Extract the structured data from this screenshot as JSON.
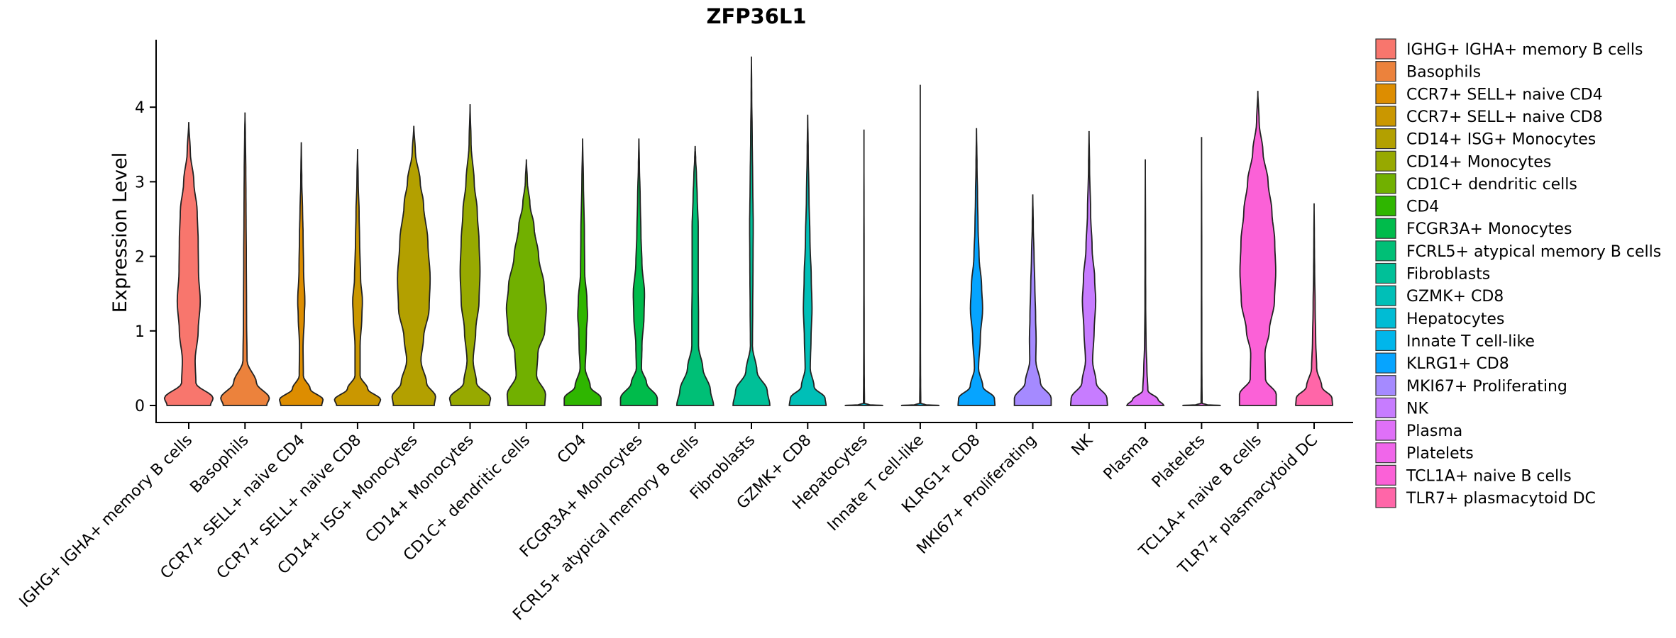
{
  "chart_data": {
    "type": "violin",
    "title": "ZFP36L1",
    "xlabel": "",
    "ylabel": "Expression Level",
    "ylim": [
      -0.22,
      4.9
    ],
    "yticks": [
      0,
      1,
      2,
      3,
      4
    ],
    "categories": [
      "IGHG+ IGHA+ memory B cells",
      "Basophils",
      "CCR7+ SELL+ naive CD4",
      "CCR7+ SELL+ naive CD8",
      "CD14+ ISG+ Monocytes",
      "CD14+ Monocytes",
      "CD1C+ dendritic cells",
      "CD4",
      "FCGR3A+ Monocytes",
      "FCRL5+ atypical memory B cells",
      "Fibroblasts",
      "GZMK+ CD8",
      "Hepatocytes",
      "Innate T cell-like",
      "KLRG1+ CD8",
      "MKI67+ Proliferating",
      "NK",
      "Plasma",
      "Platelets",
      "TCL1A+ naive B cells",
      "TLR7+ plasmacytoid DC"
    ],
    "legend_labels": [
      " IGHG+ IGHA+ memory B cells",
      "Basophils",
      "CCR7+ SELL+ naive CD4",
      "CCR7+ SELL+ naive CD8",
      "CD14+ ISG+ Monocytes",
      "CD14+ Monocytes",
      "CD1C+ dendritic cells",
      "CD4",
      "FCGR3A+ Monocytes",
      "FCRL5+ atypical memory B cells",
      "Fibroblasts",
      "GZMK+ CD8",
      "Hepatocytes",
      "Innate T cell-like",
      "KLRG1+ CD8",
      "MKI67+ Proliferating",
      "NK",
      "Plasma",
      "Platelets",
      "TCL1A+ naive B cells",
      "TLR7+ plasmacytoid DC"
    ],
    "colors": [
      "#F8766D",
      "#EC823C",
      "#DD8D00",
      "#CA9700",
      "#B3A000",
      "#97A900",
      "#71B000",
      "#2FB600",
      "#00BB4B",
      "#00BF76",
      "#00C098",
      "#00BFB7",
      "#00BCD4",
      "#00B6EB",
      "#06A4FF",
      "#A58AFF",
      "#C77CFF",
      "#DF70F8",
      "#F066EA",
      "#FB61D7",
      "#FF66A8"
    ],
    "legend_position": "right",
    "series": [
      {
        "name": "IGHG+ IGHA+ memory B cells",
        "max": 3.8,
        "profile": [
          [
            0,
            0.85
          ],
          [
            0.1,
            0.95
          ],
          [
            0.3,
            0.28
          ],
          [
            0.6,
            0.25
          ],
          [
            1.0,
            0.37
          ],
          [
            1.4,
            0.45
          ],
          [
            1.8,
            0.38
          ],
          [
            2.2,
            0.37
          ],
          [
            2.6,
            0.33
          ],
          [
            3.0,
            0.2
          ],
          [
            3.4,
            0.06
          ],
          [
            3.8,
            0
          ]
        ]
      },
      {
        "name": "Basophils",
        "max": 3.93,
        "profile": [
          [
            0,
            0.85
          ],
          [
            0.1,
            0.95
          ],
          [
            0.3,
            0.45
          ],
          [
            0.6,
            0.08
          ],
          [
            1.2,
            0.06
          ],
          [
            2.0,
            0.05
          ],
          [
            2.6,
            0.04
          ],
          [
            3.2,
            0.03
          ],
          [
            3.6,
            0.015
          ],
          [
            3.93,
            0
          ]
        ]
      },
      {
        "name": "CCR7+ SELL+ naive CD4",
        "max": 3.53,
        "profile": [
          [
            0,
            0.8
          ],
          [
            0.08,
            0.85
          ],
          [
            0.22,
            0.35
          ],
          [
            0.4,
            0.08
          ],
          [
            0.8,
            0.07
          ],
          [
            1.2,
            0.12
          ],
          [
            1.4,
            0.14
          ],
          [
            1.8,
            0.09
          ],
          [
            2.3,
            0.07
          ],
          [
            2.6,
            0.05
          ],
          [
            3.0,
            0.02
          ],
          [
            3.53,
            0
          ]
        ]
      },
      {
        "name": "CCR7+ SELL+ naive CD8",
        "max": 3.44,
        "profile": [
          [
            0,
            0.82
          ],
          [
            0.08,
            0.9
          ],
          [
            0.22,
            0.4
          ],
          [
            0.4,
            0.1
          ],
          [
            0.8,
            0.1
          ],
          [
            1.2,
            0.17
          ],
          [
            1.4,
            0.19
          ],
          [
            1.7,
            0.12
          ],
          [
            2.2,
            0.08
          ],
          [
            2.6,
            0.06
          ],
          [
            3.0,
            0.025
          ],
          [
            3.44,
            0
          ]
        ]
      },
      {
        "name": "CD14+ ISG+ Monocytes",
        "max": 3.75,
        "profile": [
          [
            0,
            0.8
          ],
          [
            0.12,
            0.85
          ],
          [
            0.3,
            0.5
          ],
          [
            0.6,
            0.28
          ],
          [
            0.9,
            0.38
          ],
          [
            1.3,
            0.6
          ],
          [
            1.7,
            0.64
          ],
          [
            2.2,
            0.55
          ],
          [
            2.7,
            0.38
          ],
          [
            3.0,
            0.25
          ],
          [
            3.4,
            0.06
          ],
          [
            3.75,
            0
          ]
        ]
      },
      {
        "name": "CD14+ Monocytes",
        "max": 4.04,
        "profile": [
          [
            0,
            0.75
          ],
          [
            0.1,
            0.8
          ],
          [
            0.3,
            0.25
          ],
          [
            0.6,
            0.12
          ],
          [
            1.0,
            0.22
          ],
          [
            1.4,
            0.35
          ],
          [
            1.8,
            0.39
          ],
          [
            2.2,
            0.35
          ],
          [
            2.6,
            0.28
          ],
          [
            3.0,
            0.16
          ],
          [
            3.5,
            0.04
          ],
          [
            4.04,
            0
          ]
        ]
      },
      {
        "name": "CD1C+ dendritic cells",
        "max": 3.3,
        "profile": [
          [
            0,
            0.72
          ],
          [
            0.15,
            0.75
          ],
          [
            0.4,
            0.4
          ],
          [
            0.7,
            0.45
          ],
          [
            1.0,
            0.72
          ],
          [
            1.3,
            0.78
          ],
          [
            1.6,
            0.7
          ],
          [
            2.0,
            0.48
          ],
          [
            2.4,
            0.3
          ],
          [
            2.7,
            0.14
          ],
          [
            3.0,
            0.04
          ],
          [
            3.3,
            0
          ]
        ]
      },
      {
        "name": "CD4",
        "max": 3.58,
        "profile": [
          [
            0,
            0.72
          ],
          [
            0.1,
            0.72
          ],
          [
            0.25,
            0.3
          ],
          [
            0.5,
            0.1
          ],
          [
            0.8,
            0.14
          ],
          [
            1.0,
            0.15
          ],
          [
            1.2,
            0.19
          ],
          [
            1.4,
            0.17
          ],
          [
            1.8,
            0.08
          ],
          [
            2.3,
            0.07
          ],
          [
            3.0,
            0.03
          ],
          [
            3.58,
            0
          ]
        ]
      },
      {
        "name": "FCGR3A+ Monocytes",
        "max": 3.58,
        "profile": [
          [
            0,
            0.72
          ],
          [
            0.1,
            0.72
          ],
          [
            0.3,
            0.3
          ],
          [
            0.5,
            0.1
          ],
          [
            0.8,
            0.12
          ],
          [
            1.2,
            0.2
          ],
          [
            1.5,
            0.22
          ],
          [
            1.9,
            0.12
          ],
          [
            2.3,
            0.08
          ],
          [
            2.8,
            0.05
          ],
          [
            3.2,
            0.02
          ],
          [
            3.58,
            0
          ]
        ]
      },
      {
        "name": "FCRL5+ atypical memory B cells",
        "max": 3.48,
        "profile": [
          [
            0,
            0.72
          ],
          [
            0.2,
            0.6
          ],
          [
            0.5,
            0.3
          ],
          [
            0.8,
            0.13
          ],
          [
            1.2,
            0.13
          ],
          [
            1.6,
            0.12
          ],
          [
            2.0,
            0.12
          ],
          [
            2.4,
            0.12
          ],
          [
            2.8,
            0.08
          ],
          [
            3.1,
            0.05
          ],
          [
            3.3,
            0.02
          ],
          [
            3.48,
            0
          ]
        ]
      },
      {
        "name": "Fibroblasts",
        "max": 4.68,
        "profile": [
          [
            0,
            0.72
          ],
          [
            0.2,
            0.62
          ],
          [
            0.45,
            0.22
          ],
          [
            0.8,
            0.04
          ],
          [
            1.3,
            0.05
          ],
          [
            1.8,
            0.06
          ],
          [
            2.4,
            0.07
          ],
          [
            3.0,
            0.05
          ],
          [
            3.6,
            0.03
          ],
          [
            4.2,
            0.01
          ],
          [
            4.68,
            0
          ]
        ]
      },
      {
        "name": "GZMK+ CD8",
        "max": 3.9,
        "profile": [
          [
            0,
            0.72
          ],
          [
            0.1,
            0.68
          ],
          [
            0.25,
            0.25
          ],
          [
            0.5,
            0.1
          ],
          [
            0.9,
            0.13
          ],
          [
            1.3,
            0.17
          ],
          [
            1.7,
            0.14
          ],
          [
            2.2,
            0.09
          ],
          [
            2.8,
            0.05
          ],
          [
            3.4,
            0.02
          ],
          [
            3.9,
            0
          ]
        ]
      },
      {
        "name": "Hepatocytes",
        "max": 3.7,
        "profile": [
          [
            0,
            0.75
          ],
          [
            0.01,
            0.2
          ],
          [
            0.03,
            0.02
          ],
          [
            0.5,
            0.01
          ],
          [
            2.0,
            0.005
          ],
          [
            3.7,
            0
          ]
        ]
      },
      {
        "name": "Innate T cell-like",
        "max": 4.3,
        "profile": [
          [
            0,
            0.75
          ],
          [
            0.01,
            0.2
          ],
          [
            0.03,
            0.02
          ],
          [
            0.5,
            0.01
          ],
          [
            2.0,
            0.005
          ],
          [
            4.3,
            0
          ]
        ]
      },
      {
        "name": "KLRG1+ CD8",
        "max": 3.72,
        "profile": [
          [
            0,
            0.72
          ],
          [
            0.1,
            0.7
          ],
          [
            0.25,
            0.25
          ],
          [
            0.5,
            0.08
          ],
          [
            0.9,
            0.15
          ],
          [
            1.3,
            0.24
          ],
          [
            1.6,
            0.2
          ],
          [
            2.0,
            0.1
          ],
          [
            2.4,
            0.06
          ],
          [
            2.8,
            0.04
          ],
          [
            3.2,
            0.02
          ],
          [
            3.72,
            0
          ]
        ]
      },
      {
        "name": "MKI67+ Proliferating",
        "max": 2.83,
        "profile": [
          [
            0,
            0.72
          ],
          [
            0.1,
            0.72
          ],
          [
            0.3,
            0.3
          ],
          [
            0.6,
            0.12
          ],
          [
            0.9,
            0.13
          ],
          [
            1.2,
            0.11
          ],
          [
            1.6,
            0.08
          ],
          [
            2.0,
            0.05
          ],
          [
            2.4,
            0.02
          ],
          [
            2.83,
            0
          ]
        ]
      },
      {
        "name": "NK",
        "max": 3.68,
        "profile": [
          [
            0,
            0.72
          ],
          [
            0.1,
            0.7
          ],
          [
            0.3,
            0.28
          ],
          [
            0.6,
            0.14
          ],
          [
            1.0,
            0.2
          ],
          [
            1.4,
            0.26
          ],
          [
            1.7,
            0.22
          ],
          [
            2.1,
            0.12
          ],
          [
            2.6,
            0.06
          ],
          [
            3.2,
            0.02
          ],
          [
            3.68,
            0
          ]
        ]
      },
      {
        "name": "Plasma",
        "max": 3.3,
        "profile": [
          [
            0,
            0.72
          ],
          [
            0.08,
            0.5
          ],
          [
            0.2,
            0.1
          ],
          [
            0.5,
            0.06
          ],
          [
            0.8,
            0.03
          ],
          [
            1.3,
            0.015
          ],
          [
            2.0,
            0.01
          ],
          [
            3.3,
            0
          ]
        ]
      },
      {
        "name": "Platelets",
        "max": 3.6,
        "profile": [
          [
            0,
            0.75
          ],
          [
            0.01,
            0.2
          ],
          [
            0.03,
            0.02
          ],
          [
            0.5,
            0.01
          ],
          [
            2.0,
            0.005
          ],
          [
            3.6,
            0
          ]
        ]
      },
      {
        "name": "TCL1A+ naive B cells",
        "max": 4.22,
        "profile": [
          [
            0,
            0.72
          ],
          [
            0.15,
            0.72
          ],
          [
            0.35,
            0.3
          ],
          [
            0.7,
            0.28
          ],
          [
            1.0,
            0.45
          ],
          [
            1.4,
            0.65
          ],
          [
            1.8,
            0.7
          ],
          [
            2.2,
            0.66
          ],
          [
            2.6,
            0.55
          ],
          [
            3.0,
            0.4
          ],
          [
            3.4,
            0.2
          ],
          [
            3.8,
            0.05
          ],
          [
            4.22,
            0
          ]
        ]
      },
      {
        "name": "TLR7+ plasmacytoid DC",
        "max": 2.71,
        "profile": [
          [
            0,
            0.72
          ],
          [
            0.1,
            0.7
          ],
          [
            0.25,
            0.3
          ],
          [
            0.5,
            0.1
          ],
          [
            0.9,
            0.06
          ],
          [
            1.3,
            0.04
          ],
          [
            1.8,
            0.02
          ],
          [
            2.2,
            0.01
          ],
          [
            2.71,
            0
          ]
        ]
      }
    ]
  }
}
